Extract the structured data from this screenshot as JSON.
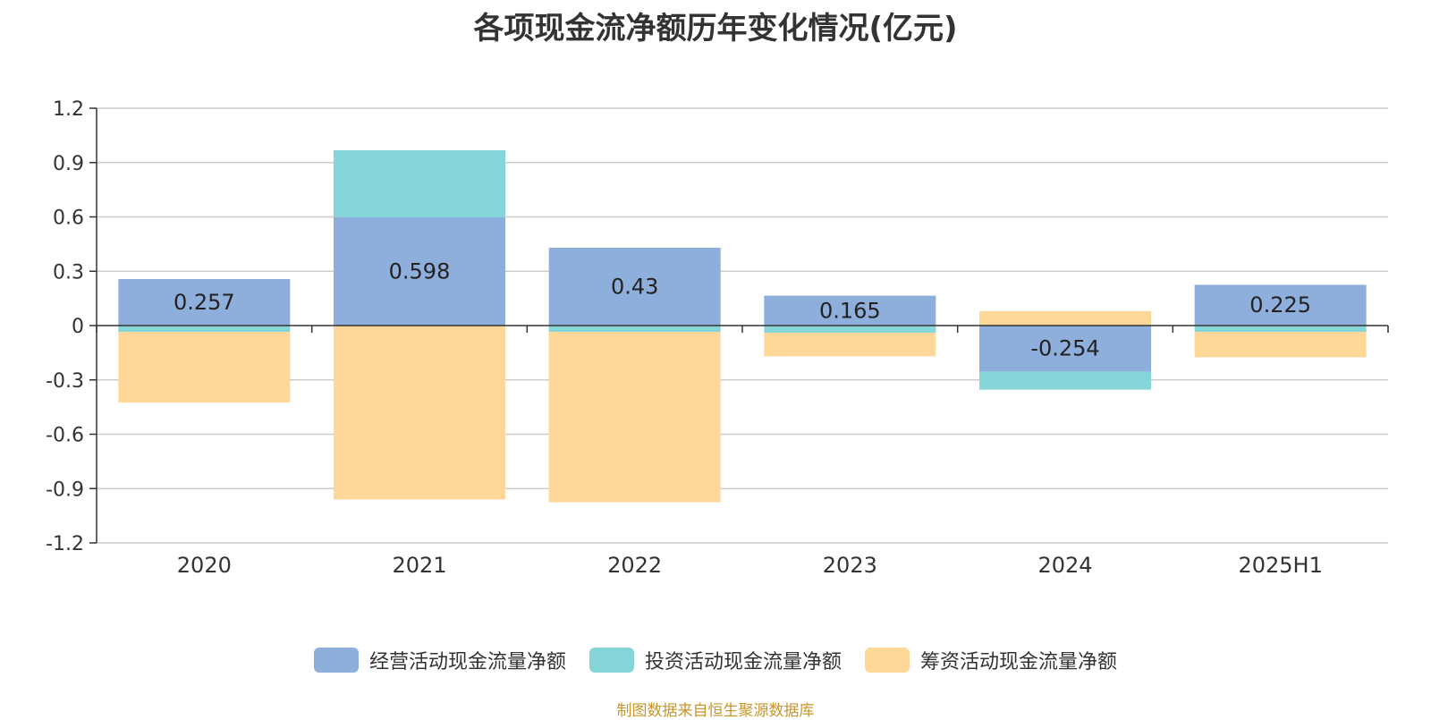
{
  "chart_data": {
    "type": "bar",
    "stacked": true,
    "title": "各项现金流净额历年变化情况(亿元)",
    "categories": [
      "2020",
      "2021",
      "2022",
      "2023",
      "2024",
      "2025H1"
    ],
    "ylim": [
      -1.2,
      1.2
    ],
    "yticks": [
      1.2,
      0.9,
      0.6,
      0.3,
      0,
      -0.3,
      -0.6,
      -0.9,
      -1.2
    ],
    "ytick_labels": [
      "1.2",
      "0.9",
      "0.6",
      "0.3",
      "0",
      "-0.3",
      "-0.6",
      "-0.9",
      "-1.2"
    ],
    "grid": true,
    "legend_position": "bottom-center",
    "series": [
      {
        "name": "经营活动现金流量净额",
        "color": "#8eaedb",
        "values": [
          0.257,
          0.598,
          0.43,
          0.165,
          -0.254,
          0.225
        ]
      },
      {
        "name": "投资活动现金流量净额",
        "color": "#86d6d9",
        "values": [
          -0.035,
          0.37,
          -0.035,
          -0.04,
          -0.1,
          -0.035
        ]
      },
      {
        "name": "筹资活动现金流量净额",
        "color": "#fed898",
        "values": [
          -0.39,
          -0.96,
          -0.94,
          -0.13,
          0.08,
          -0.14
        ]
      }
    ],
    "data_labels": [
      "0.257",
      "0.598",
      "0.43",
      "0.165",
      "-0.254",
      "0.225"
    ]
  },
  "source": "制图数据来自恒生聚源数据库"
}
